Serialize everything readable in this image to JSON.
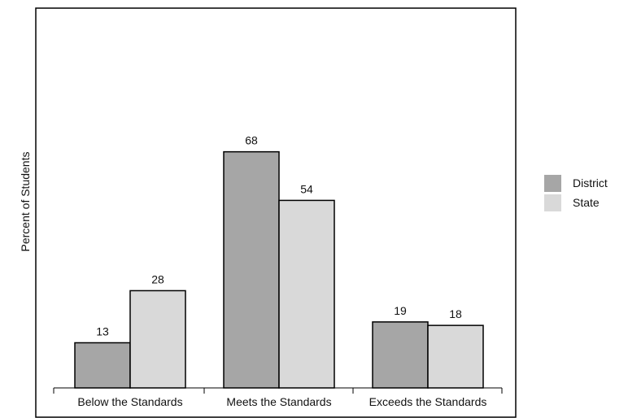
{
  "chart_data": {
    "type": "bar",
    "ylabel": "Percent of Students",
    "categories": [
      "Below the Standards",
      "Meets the Standards",
      "Exceeds the Standards"
    ],
    "series": [
      {
        "name": "District",
        "values": [
          13,
          68,
          19
        ],
        "color": "#a6a6a6"
      },
      {
        "name": "State",
        "values": [
          28,
          54,
          18
        ],
        "color": "#d9d9d9"
      }
    ],
    "ylim": [
      0,
      100
    ],
    "legend_position": "right",
    "grid": false
  }
}
